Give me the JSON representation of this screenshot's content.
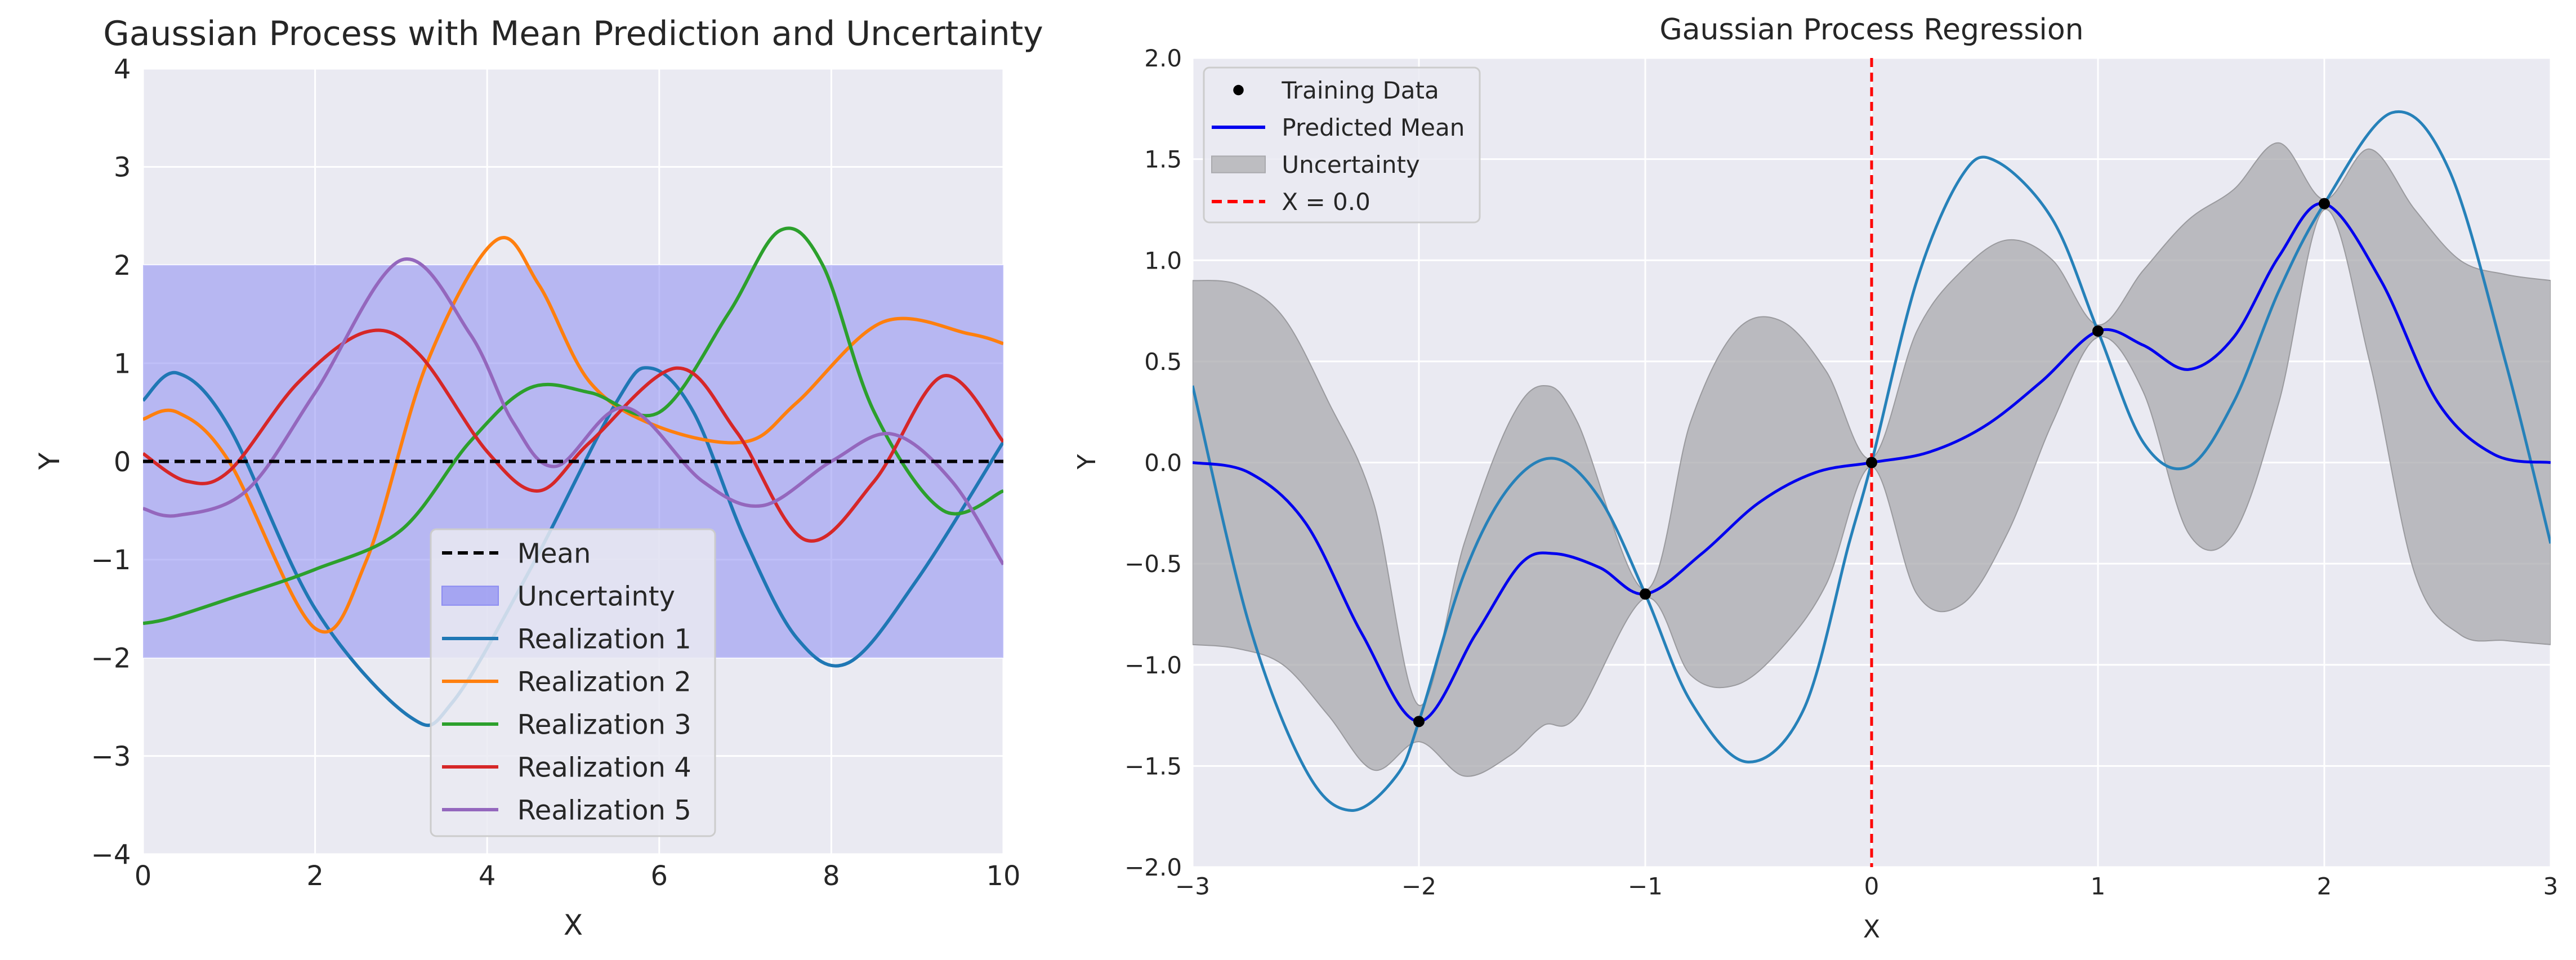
{
  "figure": {
    "background": "#ffffff",
    "axes_facecolor": "#eaeaf2",
    "grid_color": "#ffffff"
  },
  "chart_data": [
    {
      "type": "line",
      "title": "Gaussian Process with Mean Prediction and Uncertainty",
      "xlabel": "X",
      "ylabel": "Y",
      "xlim": [
        0,
        10
      ],
      "ylim": [
        -4,
        4
      ],
      "xticks": [
        0,
        2,
        4,
        6,
        8,
        10
      ],
      "yticks": [
        -4,
        -3,
        -2,
        -1,
        0,
        1,
        2,
        3,
        4
      ],
      "xtick_labels": [
        "0",
        "2",
        "4",
        "6",
        "8",
        "10"
      ],
      "ytick_labels": [
        "−4",
        "−3",
        "−2",
        "−1",
        "0",
        "1",
        "2",
        "3",
        "4"
      ],
      "grid": true,
      "legend_position": "lower-center",
      "uncertainty_band": {
        "name": "Uncertainty",
        "lower": -2,
        "upper": 2,
        "color": "#8c8cf2"
      },
      "mean_line": {
        "name": "Mean",
        "value": 0,
        "color": "#000000"
      },
      "legend": [
        {
          "label": "Mean",
          "kind": "dash",
          "color": "#000000"
        },
        {
          "label": "Uncertainty",
          "kind": "patch",
          "color": "#8c8cf2"
        },
        {
          "label": "Realization 1",
          "kind": "line",
          "color": "#1f77b4"
        },
        {
          "label": "Realization 2",
          "kind": "line",
          "color": "#ff7f0e"
        },
        {
          "label": "Realization 3",
          "kind": "line",
          "color": "#2ca02c"
        },
        {
          "label": "Realization 4",
          "kind": "line",
          "color": "#d62728"
        },
        {
          "label": "Realization 5",
          "kind": "line",
          "color": "#9467bd"
        }
      ],
      "series": [
        {
          "name": "Realization 1",
          "color": "#1f77b4",
          "x": [
            0,
            0.4,
            1.0,
            2.0,
            3.1,
            3.6,
            4.5,
            5.5,
            5.9,
            6.4,
            7.0,
            7.6,
            8.2,
            9.0,
            10.0
          ],
          "y": [
            0.62,
            0.9,
            0.35,
            -1.5,
            -2.6,
            -2.45,
            -1.1,
            0.6,
            0.95,
            0.5,
            -0.8,
            -1.8,
            -2.05,
            -1.2,
            0.2
          ]
        },
        {
          "name": "Realization 2",
          "color": "#ff7f0e",
          "x": [
            0,
            0.4,
            1.0,
            2.0,
            2.6,
            3.3,
            4.1,
            4.6,
            5.2,
            6.0,
            7.0,
            7.6,
            8.6,
            9.6,
            10.0
          ],
          "y": [
            0.43,
            0.5,
            0.0,
            -1.7,
            -1.0,
            1.0,
            2.25,
            1.8,
            0.8,
            0.35,
            0.2,
            0.6,
            1.42,
            1.3,
            1.2
          ]
        },
        {
          "name": "Realization 3",
          "color": "#2ca02c",
          "x": [
            0,
            0.3,
            1.0,
            2.0,
            3.0,
            3.8,
            4.5,
            5.2,
            6.0,
            6.8,
            7.4,
            7.9,
            8.5,
            9.3,
            10.0
          ],
          "y": [
            -1.65,
            -1.6,
            -1.4,
            -1.1,
            -0.7,
            0.2,
            0.75,
            0.7,
            0.5,
            1.5,
            2.35,
            2.0,
            0.5,
            -0.5,
            -0.3
          ]
        },
        {
          "name": "Realization 4",
          "color": "#d62728",
          "x": [
            0,
            0.5,
            1.0,
            1.8,
            2.6,
            3.2,
            4.0,
            4.6,
            5.2,
            6.2,
            6.9,
            7.7,
            8.5,
            9.3,
            10.0
          ],
          "y": [
            0.08,
            -0.2,
            -0.1,
            0.8,
            1.32,
            1.1,
            0.1,
            -0.3,
            0.2,
            0.95,
            0.3,
            -0.8,
            -0.2,
            0.87,
            0.2
          ]
        },
        {
          "name": "Realization 5",
          "color": "#9467bd",
          "x": [
            0,
            0.4,
            1.2,
            2.0,
            3.0,
            3.8,
            4.3,
            4.8,
            5.6,
            6.5,
            7.2,
            8.0,
            8.7,
            9.4,
            10.0
          ],
          "y": [
            -0.48,
            -0.55,
            -0.3,
            0.7,
            2.05,
            1.3,
            0.4,
            -0.05,
            0.55,
            -0.2,
            -0.45,
            0.0,
            0.28,
            -0.2,
            -1.05
          ]
        }
      ]
    },
    {
      "type": "line",
      "title": "Gaussian Process Regression",
      "xlabel": "X",
      "ylabel": "Y",
      "xlim": [
        -3,
        3
      ],
      "ylim": [
        -2.0,
        2.0
      ],
      "xticks": [
        -3,
        -2,
        -1,
        0,
        1,
        2,
        3
      ],
      "yticks": [
        -2.0,
        -1.5,
        -1.0,
        -0.5,
        0.0,
        0.5,
        1.0,
        1.5,
        2.0
      ],
      "xtick_labels": [
        "−3",
        "−2",
        "−1",
        "0",
        "1",
        "2",
        "3"
      ],
      "ytick_labels": [
        "−2.0",
        "−1.5",
        "−1.0",
        "−0.5",
        "0.0",
        "0.5",
        "1.0",
        "1.5",
        "2.0"
      ],
      "grid": true,
      "legend_position": "top-left",
      "vline": {
        "x": 0.0,
        "label": "X = 0.0",
        "color": "#ff0000"
      },
      "legend": [
        {
          "label": "Training Data",
          "kind": "dot",
          "color": "#000000"
        },
        {
          "label": "Predicted Mean",
          "kind": "line",
          "color": "#0000ee"
        },
        {
          "label": "Uncertainty",
          "kind": "patch",
          "color": "#a9a9ad"
        },
        {
          "label": "X = 0.0",
          "kind": "dash",
          "color": "#ff0000"
        }
      ],
      "training_data": {
        "name": "Training Data",
        "x": [
          -2,
          -1,
          0,
          1,
          2
        ],
        "y": [
          -1.28,
          -0.65,
          0.0,
          0.65,
          1.28
        ]
      },
      "uncertainty": {
        "name": "Uncertainty",
        "color": "#a9a9ad",
        "x": [
          -3,
          -2.8,
          -2.6,
          -2.4,
          -2.2,
          -2.0,
          -1.8,
          -1.6,
          -1.45,
          -1.3,
          -1.0,
          -0.8,
          -0.6,
          -0.4,
          -0.2,
          0.0,
          0.2,
          0.4,
          0.6,
          0.8,
          1.0,
          1.2,
          1.4,
          1.6,
          1.8,
          2.0,
          2.2,
          2.4,
          2.6,
          2.8,
          3.0
        ],
        "lower": [
          -0.9,
          -0.92,
          -1.0,
          -1.25,
          -1.52,
          -1.38,
          -1.55,
          -1.45,
          -1.3,
          -1.25,
          -0.67,
          -1.05,
          -1.1,
          -0.92,
          -0.6,
          -0.02,
          -0.65,
          -0.7,
          -0.35,
          0.2,
          0.62,
          0.35,
          -0.35,
          -0.35,
          0.3,
          1.25,
          0.5,
          -0.55,
          -0.85,
          -0.88,
          -0.9
        ],
        "upper": [
          0.9,
          0.88,
          0.72,
          0.3,
          -0.2,
          -1.2,
          -0.4,
          0.2,
          0.38,
          0.2,
          -0.63,
          0.2,
          0.65,
          0.7,
          0.45,
          0.02,
          0.65,
          0.95,
          1.1,
          1.0,
          0.68,
          0.95,
          1.2,
          1.35,
          1.58,
          1.3,
          1.55,
          1.25,
          1.0,
          0.93,
          0.9
        ]
      },
      "series": [
        {
          "name": "Predicted Mean",
          "color": "#0000ee",
          "x": [
            -3,
            -2.75,
            -2.5,
            -2.25,
            -2.0,
            -1.75,
            -1.55,
            -1.4,
            -1.2,
            -1.0,
            -0.75,
            -0.5,
            -0.25,
            0.0,
            0.25,
            0.5,
            0.75,
            1.0,
            1.2,
            1.4,
            1.6,
            1.8,
            2.0,
            2.25,
            2.5,
            2.75,
            3.0
          ],
          "y": [
            0.0,
            -0.05,
            -0.3,
            -0.85,
            -1.28,
            -0.85,
            -0.5,
            -0.45,
            -0.52,
            -0.65,
            -0.45,
            -0.2,
            -0.05,
            0.0,
            0.05,
            0.18,
            0.4,
            0.65,
            0.58,
            0.46,
            0.62,
            1.02,
            1.28,
            0.9,
            0.3,
            0.04,
            0.0
          ]
        },
        {
          "name": "",
          "color": "#2681b9",
          "x": [
            -3,
            -2.75,
            -2.5,
            -2.3,
            -2.1,
            -2.0,
            -1.8,
            -1.6,
            -1.4,
            -1.2,
            -1.0,
            -0.8,
            -0.55,
            -0.3,
            -0.1,
            0.0,
            0.2,
            0.4,
            0.55,
            0.8,
            1.0,
            1.2,
            1.4,
            1.6,
            1.8,
            2.0,
            2.3,
            2.55,
            2.8,
            3.0
          ],
          "y": [
            0.38,
            -0.8,
            -1.52,
            -1.72,
            -1.55,
            -1.28,
            -0.55,
            -0.12,
            0.02,
            -0.18,
            -0.65,
            -1.18,
            -1.48,
            -1.22,
            -0.4,
            0.0,
            0.9,
            1.42,
            1.49,
            1.2,
            0.65,
            0.1,
            -0.02,
            0.3,
            0.85,
            1.28,
            1.73,
            1.45,
            0.5,
            -0.4
          ]
        }
      ]
    }
  ]
}
